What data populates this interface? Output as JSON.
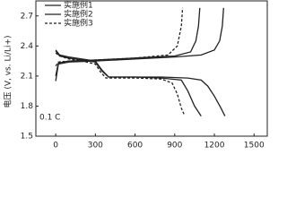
{
  "chart_data": {
    "type": "line",
    "y_label": "电压 (V, vs. Li/Li+)",
    "annotation": "0.1 C",
    "xlim": [
      -150,
      1600
    ],
    "xticks": [
      0,
      300,
      600,
      900,
      1200,
      1500
    ],
    "ylim": [
      1.5,
      2.85
    ],
    "yticks": [
      1.5,
      1.8,
      2.1,
      2.4,
      2.7
    ],
    "legend": "upper left",
    "series": [
      {
        "name": "实施例1",
        "color": "#222222",
        "dash": false,
        "x": [
          0,
          30,
          100,
          200,
          300,
          350,
          400,
          600,
          800,
          1000,
          1100,
          1150,
          1200,
          1250,
          1280,
          null,
          0,
          20,
          100,
          300,
          600,
          900,
          1100,
          1200,
          1240,
          1260,
          1270
        ],
        "values": [
          2.35,
          2.3,
          2.28,
          2.26,
          2.24,
          2.15,
          2.09,
          2.09,
          2.09,
          2.08,
          2.06,
          2.0,
          1.9,
          1.78,
          1.7,
          null,
          2.05,
          2.22,
          2.24,
          2.25,
          2.27,
          2.29,
          2.31,
          2.36,
          2.45,
          2.6,
          2.78
        ]
      },
      {
        "name": "实施例2",
        "color": "#222222",
        "dash": false,
        "x": [
          0,
          30,
          100,
          200,
          300,
          350,
          400,
          600,
          800,
          950,
          1000,
          1050,
          1100,
          null,
          0,
          20,
          100,
          300,
          600,
          900,
          1020,
          1060,
          1080,
          1090
        ],
        "values": [
          2.36,
          2.31,
          2.29,
          2.27,
          2.25,
          2.16,
          2.09,
          2.09,
          2.08,
          2.06,
          1.95,
          1.8,
          1.7,
          null,
          2.1,
          2.23,
          2.25,
          2.26,
          2.28,
          2.3,
          2.34,
          2.45,
          2.6,
          2.78
        ]
      },
      {
        "name": "实施例3",
        "color": "#222222",
        "dash": true,
        "x": [
          0,
          30,
          100,
          200,
          300,
          340,
          380,
          600,
          800,
          880,
          920,
          950,
          970,
          null,
          0,
          20,
          100,
          300,
          600,
          850,
          920,
          950,
          960
        ],
        "values": [
          2.33,
          2.3,
          2.27,
          2.25,
          2.22,
          2.14,
          2.08,
          2.08,
          2.07,
          2.03,
          1.92,
          1.78,
          1.72,
          null,
          2.2,
          2.24,
          2.25,
          2.26,
          2.28,
          2.31,
          2.4,
          2.6,
          2.78
        ]
      }
    ]
  }
}
